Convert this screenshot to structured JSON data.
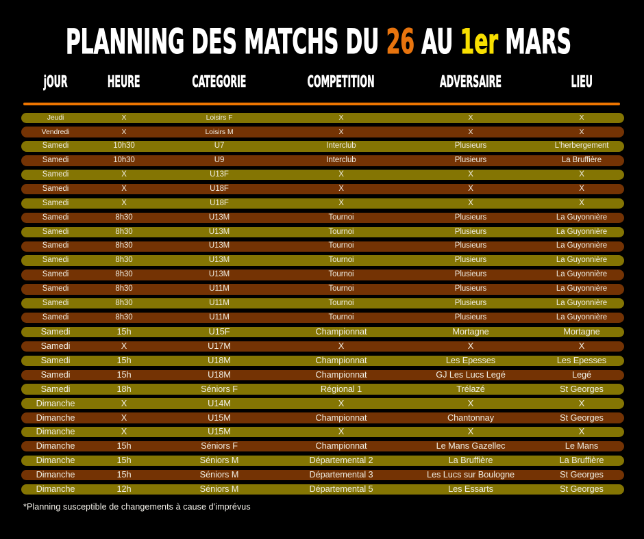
{
  "title": {
    "part1": "PLANNING DES MATCHS DU ",
    "highlight_orange": "26",
    "part2": " AU ",
    "highlight_yellow": "1er",
    "part3": " MARS"
  },
  "colors": {
    "background": "#000000",
    "title_white": "#FFFFFF",
    "title_orange": "#E8740E",
    "title_yellow": "#F8DF00",
    "divider_orange": "#EE7500",
    "row_olive": "#847503",
    "row_brown": "#743304",
    "row_text": "#F0EDE2"
  },
  "columns": [
    "jOUR",
    "HEURE",
    "CATEGORIE",
    "COMPETITION",
    "ADVERSAIRE",
    "LIEU"
  ],
  "rows": [
    {
      "jour": "Jeudi",
      "heure": "X",
      "categorie": "Loisirs F",
      "competition": "X",
      "adversaire": "X",
      "lieu": "X",
      "variant": "olive"
    },
    {
      "jour": "Vendredi",
      "heure": "X",
      "categorie": "Loisirs M",
      "competition": "X",
      "adversaire": "X",
      "lieu": "X",
      "variant": "brown"
    },
    {
      "jour": "Samedi",
      "heure": "10h30",
      "categorie": "U7",
      "competition": "Interclub",
      "adversaire": "Plusieurs",
      "lieu": "L'herbergement",
      "variant": "olive"
    },
    {
      "jour": "Samedi",
      "heure": "10h30",
      "categorie": "U9",
      "competition": "Interclub",
      "adversaire": "Plusieurs",
      "lieu": "La Bruffière",
      "variant": "brown"
    },
    {
      "jour": "Samedi",
      "heure": "X",
      "categorie": "U13F",
      "competition": "X",
      "adversaire": "X",
      "lieu": "X",
      "variant": "olive"
    },
    {
      "jour": "Samedi",
      "heure": "X",
      "categorie": "U18F",
      "competition": "X",
      "adversaire": "X",
      "lieu": "X",
      "variant": "brown"
    },
    {
      "jour": "Samedi",
      "heure": "X",
      "categorie": "U18F",
      "competition": "X",
      "adversaire": "X",
      "lieu": "X",
      "variant": "olive"
    },
    {
      "jour": "Samedi",
      "heure": "8h30",
      "categorie": "U13M",
      "competition": "Tournoi",
      "adversaire": "Plusieurs",
      "lieu": "La Guyonnière",
      "variant": "brown"
    },
    {
      "jour": "Samedi",
      "heure": "8h30",
      "categorie": "U13M",
      "competition": "Tournoi",
      "adversaire": "Plusieurs",
      "lieu": "La Guyonnière",
      "variant": "olive"
    },
    {
      "jour": "Samedi",
      "heure": "8h30",
      "categorie": "U13M",
      "competition": "Tournoi",
      "adversaire": "Plusieurs",
      "lieu": "La Guyonnière",
      "variant": "brown"
    },
    {
      "jour": "Samedi",
      "heure": "8h30",
      "categorie": "U13M",
      "competition": "Tournoi",
      "adversaire": "Plusieurs",
      "lieu": "La Guyonnière",
      "variant": "olive"
    },
    {
      "jour": "Samedi",
      "heure": "8h30",
      "categorie": "U13M",
      "competition": "Tournoi",
      "adversaire": "Plusieurs",
      "lieu": "La Guyonnière",
      "variant": "brown"
    },
    {
      "jour": "Samedi",
      "heure": "8h30",
      "categorie": "U11M",
      "competition": "Tournoi",
      "adversaire": "Plusieurs",
      "lieu": "La Guyonnière",
      "variant": "brown"
    },
    {
      "jour": "Samedi",
      "heure": "8h30",
      "categorie": "U11M",
      "competition": "Tournoi",
      "adversaire": "Plusieurs",
      "lieu": "La Guyonnière",
      "variant": "olive"
    },
    {
      "jour": "Samedi",
      "heure": "8h30",
      "categorie": "U11M",
      "competition": "Tournoi",
      "adversaire": "Plusieurs",
      "lieu": "La Guyonnière",
      "variant": "brown"
    },
    {
      "jour": "Samedi",
      "heure": "15h",
      "categorie": "U15F",
      "competition": "Championnat",
      "adversaire": "Mortagne",
      "lieu": "Mortagne",
      "variant": "olive"
    },
    {
      "jour": "Samedi",
      "heure": "X",
      "categorie": "U17M",
      "competition": "X",
      "adversaire": "X",
      "lieu": "X",
      "variant": "brown"
    },
    {
      "jour": "Samedi",
      "heure": "15h",
      "categorie": "U18M",
      "competition": "Championnat",
      "adversaire": "Les Epesses",
      "lieu": "Les Epesses",
      "variant": "olive"
    },
    {
      "jour": "Samedi",
      "heure": "15h",
      "categorie": "U18M",
      "competition": "Championnat",
      "adversaire": "GJ Les Lucs Legé",
      "lieu": "Legé",
      "variant": "brown"
    },
    {
      "jour": "Samedi",
      "heure": "18h",
      "categorie": "Séniors F",
      "competition": "Régional 1",
      "adversaire": "Trélazé",
      "lieu": "St Georges",
      "variant": "olive"
    },
    {
      "jour": "Dimanche",
      "heure": "X",
      "categorie": "U14M",
      "competition": "X",
      "adversaire": "X",
      "lieu": "X",
      "variant": "olive"
    },
    {
      "jour": "Dimanche",
      "heure": "X",
      "categorie": "U15M",
      "competition": "Championnat",
      "adversaire": "Chantonnay",
      "lieu": "St Georges",
      "variant": "brown"
    },
    {
      "jour": "Dimanche",
      "heure": "X",
      "categorie": "U15M",
      "competition": "X",
      "adversaire": "X",
      "lieu": "X",
      "variant": "olive"
    },
    {
      "jour": "Dimanche",
      "heure": "15h",
      "categorie": "Séniors F",
      "competition": "Championnat",
      "adversaire": "Le Mans Gazellec",
      "lieu": "Le Mans",
      "variant": "brown"
    },
    {
      "jour": "Dimanche",
      "heure": "15h",
      "categorie": "Séniors M",
      "competition": "Départemental 2",
      "adversaire": "La Bruffière",
      "lieu": "La Bruffière",
      "variant": "olive"
    },
    {
      "jour": "Dimanche",
      "heure": "15h",
      "categorie": "Séniors M",
      "competition": "Départemental 3",
      "adversaire": "Les Lucs sur Boulogne",
      "lieu": "St Georges",
      "variant": "brown"
    },
    {
      "jour": "Dimanche",
      "heure": "12h",
      "categorie": "Séniors M",
      "competition": "Départemental 5",
      "adversaire": "Les Essarts",
      "lieu": "St Georges",
      "variant": "olive"
    }
  ],
  "footnote": "*Planning susceptible de changements à cause d'imprévus"
}
